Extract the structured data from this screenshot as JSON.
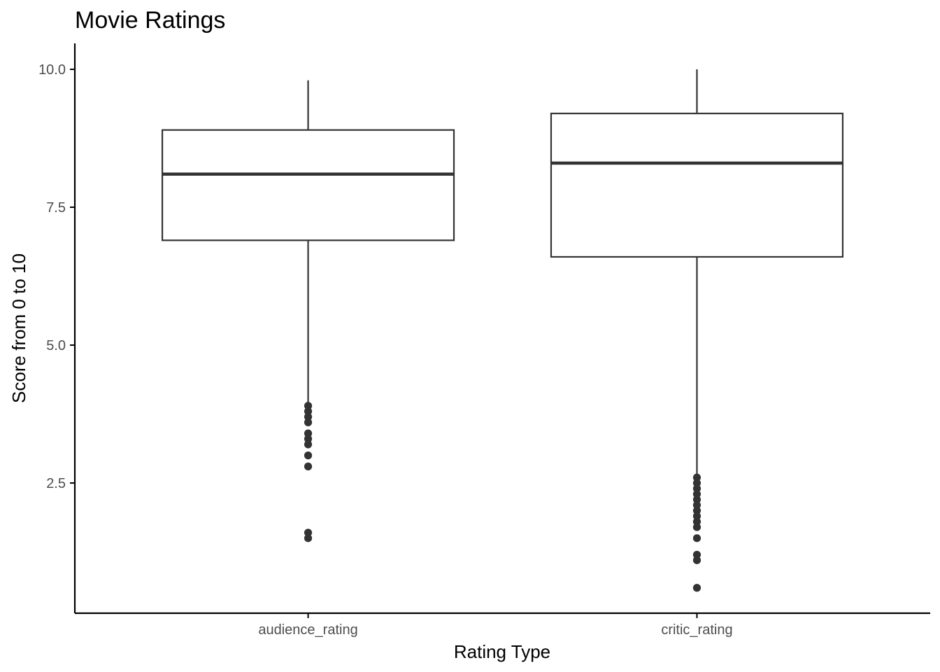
{
  "chart_data": {
    "type": "boxplot",
    "title": "Movie Ratings",
    "xlabel": "Rating Type",
    "ylabel": "Score from 0 to 10",
    "categories": [
      "audience_rating",
      "critic_rating"
    ],
    "ylim": [
      0.14,
      10.47
    ],
    "yticks": [
      2.5,
      5.0,
      7.5,
      10.0
    ],
    "ytick_labels": [
      "2.5",
      "5.0",
      "7.5",
      "10.0"
    ],
    "grid": false,
    "legend": "none",
    "boxes": [
      {
        "category": "audience_rating",
        "whisker_low": 3.9,
        "q1": 6.9,
        "median": 8.1,
        "q3": 8.9,
        "whisker_high": 9.8,
        "outliers": [
          3.9,
          3.8,
          3.7,
          3.6,
          3.4,
          3.3,
          3.2,
          3.0,
          2.8,
          1.6,
          1.5
        ]
      },
      {
        "category": "critic_rating",
        "whisker_low": 2.6,
        "q1": 6.6,
        "median": 8.3,
        "q3": 9.2,
        "whisker_high": 10.0,
        "outliers": [
          2.6,
          2.5,
          2.4,
          2.3,
          2.2,
          2.1,
          2.0,
          1.9,
          1.8,
          1.7,
          1.5,
          1.2,
          1.1,
          0.6
        ]
      }
    ],
    "colors": {
      "box_stroke": "#333333",
      "points": "#333333",
      "axis": "#000000",
      "tick_text": "#4d4d4d"
    }
  }
}
